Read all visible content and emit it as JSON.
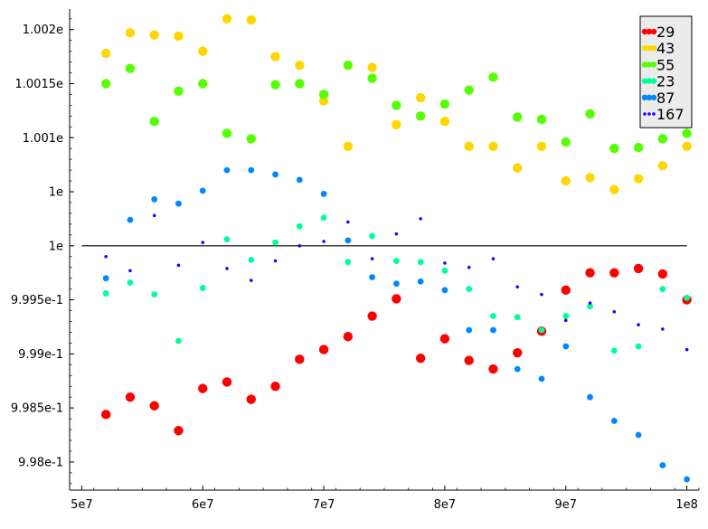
{
  "chart_data": {
    "type": "scatter",
    "title": "",
    "xlabel": "",
    "ylabel": "",
    "xlim": [
      49000000,
      101000000
    ],
    "ylim": [
      0.99774,
      1.00219
    ],
    "reference_line": {
      "y": 1.0,
      "x_start": 50000000,
      "x_end": 100000000
    },
    "x_ticks": [
      {
        "value": 50000000,
        "label": "5e7"
      },
      {
        "value": 60000000,
        "label": "6e7"
      },
      {
        "value": 70000000,
        "label": "7e7"
      },
      {
        "value": 80000000,
        "label": "8e7"
      },
      {
        "value": 90000000,
        "label": "9e7"
      },
      {
        "value": 100000000,
        "label": "1e8"
      }
    ],
    "y_ticks": [
      {
        "value": 0.998,
        "label": "9.98e-1"
      },
      {
        "value": 0.9985,
        "label": "9.985e-1"
      },
      {
        "value": 0.999,
        "label": "9.99e-1"
      },
      {
        "value": 0.9995,
        "label": "9.995e-1"
      },
      {
        "value": 1.0,
        "label": "1e"
      },
      {
        "value": 1.0005,
        "label": "1e"
      },
      {
        "value": 1.001,
        "label": "1.001e"
      },
      {
        "value": 1.0015,
        "label": "1.0015e"
      },
      {
        "value": 1.002,
        "label": "1.002e"
      }
    ],
    "legend": {
      "position": "top-right"
    },
    "series": [
      {
        "name": "29",
        "color": "#ff0000",
        "marker_size": "large",
        "x": [
          52000000,
          54000000,
          56000000,
          58000000,
          60000000,
          62000000,
          64000000,
          66000000,
          68000000,
          70000000,
          72000000,
          74000000,
          76000000,
          78000000,
          80000000,
          82000000,
          84000000,
          86000000,
          88000000,
          90000000,
          92000000,
          94000000,
          96000000,
          98000000,
          100000000
        ],
        "y": [
          0.99844,
          0.9986,
          0.99852,
          0.99829,
          0.99868,
          0.99874,
          0.99858,
          0.9987,
          0.99895,
          0.99904,
          0.99916,
          0.99935,
          0.99951,
          0.99896,
          0.99914,
          0.99894,
          0.99886,
          0.99901,
          0.99921,
          0.99959,
          0.99975,
          0.99975,
          0.99979,
          0.99974,
          0.9995
        ]
      },
      {
        "name": "43",
        "color": "#ffd700",
        "marker_size": "large",
        "x": [
          52000000,
          54000000,
          56000000,
          58000000,
          60000000,
          62000000,
          64000000,
          66000000,
          68000000,
          70000000,
          72000000,
          74000000,
          76000000,
          78000000,
          80000000,
          82000000,
          84000000,
          86000000,
          88000000,
          90000000,
          92000000,
          94000000,
          96000000,
          98000000,
          100000000
        ],
        "y": [
          1.00178,
          1.00197,
          1.00195,
          1.00194,
          1.0018,
          1.0021,
          1.00209,
          1.00175,
          1.00167,
          1.00134,
          1.00092,
          1.00165,
          1.00112,
          1.00137,
          1.00115,
          1.00092,
          1.00092,
          1.00072,
          1.00092,
          1.0006,
          1.00063,
          1.00052,
          1.00062,
          1.00074,
          1.00092
        ]
      },
      {
        "name": "55",
        "color": "#55ff00",
        "marker_size": "large",
        "x": [
          52000000,
          54000000,
          56000000,
          58000000,
          60000000,
          62000000,
          64000000,
          66000000,
          68000000,
          70000000,
          72000000,
          74000000,
          76000000,
          78000000,
          80000000,
          82000000,
          84000000,
          86000000,
          88000000,
          90000000,
          92000000,
          94000000,
          96000000,
          98000000,
          100000000
        ],
        "y": [
          1.0015,
          1.00164,
          1.00115,
          1.00143,
          1.0015,
          1.00104,
          1.00099,
          1.00149,
          1.0015,
          1.0014,
          1.00167,
          1.00155,
          1.0013,
          1.0012,
          1.00131,
          1.00144,
          1.00156,
          1.00119,
          1.00117,
          1.00096,
          1.00122,
          1.0009,
          1.00091,
          1.00099,
          1.00104
        ]
      },
      {
        "name": "23",
        "color": "#00ff99",
        "marker_size": "medium",
        "x": [
          52000000,
          54000000,
          56000000,
          58000000,
          60000000,
          62000000,
          64000000,
          66000000,
          68000000,
          70000000,
          72000000,
          74000000,
          76000000,
          78000000,
          80000000,
          82000000,
          84000000,
          86000000,
          88000000,
          90000000,
          92000000,
          94000000,
          96000000,
          98000000,
          100000000
        ],
        "y": [
          0.99956,
          0.99966,
          0.99955,
          0.99912,
          0.99961,
          1.00006,
          0.99987,
          1.00003,
          1.00018,
          1.00026,
          0.99985,
          1.00009,
          0.99986,
          0.99985,
          0.99977,
          0.9996,
          0.99935,
          0.99934,
          0.99922,
          0.99935,
          0.99944,
          0.99903,
          0.99907,
          0.9996,
          0.99952
        ]
      },
      {
        "name": "87",
        "color": "#0088ff",
        "marker_size": "medium",
        "x": [
          52000000,
          54000000,
          56000000,
          58000000,
          60000000,
          62000000,
          64000000,
          66000000,
          68000000,
          70000000,
          72000000,
          74000000,
          76000000,
          78000000,
          80000000,
          82000000,
          84000000,
          86000000,
          88000000,
          90000000,
          92000000,
          94000000,
          96000000,
          98000000,
          100000000
        ],
        "y": [
          0.9997,
          1.00024,
          1.00043,
          1.00039,
          1.00051,
          1.0007,
          1.0007,
          1.00066,
          1.00061,
          1.00048,
          1.00005,
          0.99971,
          0.99965,
          0.99967,
          0.99959,
          0.99922,
          0.99922,
          0.99886,
          0.99877,
          0.99907,
          0.9986,
          0.99838,
          0.99825,
          0.99797,
          0.99784
        ]
      },
      {
        "name": "167",
        "color": "#2200ff",
        "marker_size": "small",
        "x": [
          52000000,
          54000000,
          56000000,
          58000000,
          60000000,
          62000000,
          64000000,
          66000000,
          68000000,
          70000000,
          72000000,
          74000000,
          76000000,
          78000000,
          80000000,
          82000000,
          84000000,
          86000000,
          88000000,
          90000000,
          92000000,
          94000000,
          96000000,
          98000000,
          100000000
        ],
        "y": [
          0.9999,
          0.99977,
          1.00028,
          0.99982,
          1.00003,
          0.99979,
          0.99968,
          0.99986,
          1.0,
          1.00004,
          1.00022,
          0.99988,
          1.00011,
          1.00025,
          0.99984,
          0.9998,
          0.99988,
          0.99962,
          0.99955,
          0.99931,
          0.99947,
          0.99939,
          0.99927,
          0.99923,
          0.99904
        ]
      }
    ]
  }
}
